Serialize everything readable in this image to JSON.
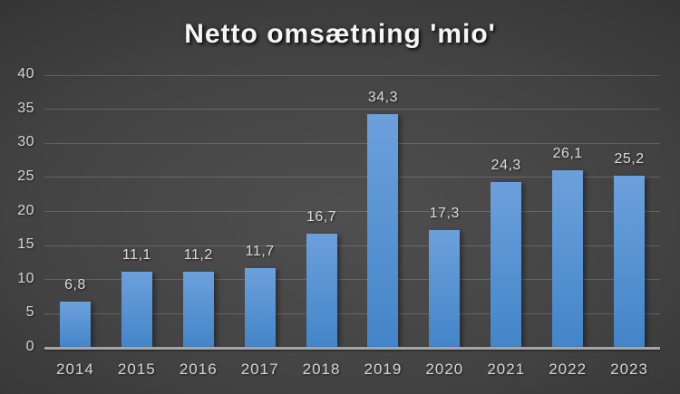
{
  "chart_data": {
    "type": "bar",
    "title": "Netto omsætning 'mio'",
    "categories": [
      "2014",
      "2015",
      "2016",
      "2017",
      "2018",
      "2019",
      "2020",
      "2021",
      "2022",
      "2023"
    ],
    "values": [
      6.8,
      11.1,
      11.2,
      11.7,
      16.7,
      34.3,
      17.3,
      24.3,
      26.1,
      25.2
    ],
    "value_labels": [
      "6,8",
      "11,1",
      "11,2",
      "11,7",
      "16,7",
      "34,3",
      "17,3",
      "24,3",
      "26,1",
      "25,2"
    ],
    "xlabel": "",
    "ylabel": "",
    "ylim": [
      0,
      40
    ],
    "ytick_step": 5,
    "ytick_labels": [
      "0",
      "5",
      "10",
      "15",
      "20",
      "25",
      "30",
      "35",
      "40"
    ],
    "grid": "horizontal",
    "legend": "none",
    "colors": {
      "bar_gradient_top": "#6CA0DC",
      "bar_gradient_bottom": "#4385C8",
      "background_center": "#4F4F4F",
      "background_edge": "#1F1F1F",
      "gridline": "#6A6A6A",
      "axis_line": "#A6A6A6",
      "title_text": "#F5F5F5",
      "label_text": "#D6D6D6"
    }
  }
}
